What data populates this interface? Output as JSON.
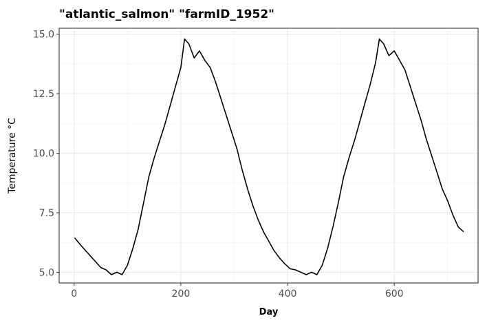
{
  "chart_data": {
    "type": "line",
    "title": "\"atlantic_salmon\" \"farmID_1952\"",
    "xlabel": "Day",
    "ylabel": "Temperature °C",
    "xlim": [
      -28,
      757
    ],
    "ylim": [
      4.55,
      15.25
    ],
    "x_ticks": [
      0,
      200,
      400,
      600
    ],
    "x_tick_labels": [
      "0",
      "200",
      "400",
      "600"
    ],
    "y_ticks": [
      5.0,
      7.5,
      10.0,
      12.5,
      15.0
    ],
    "y_tick_labels": [
      "5.0",
      "7.5",
      "10.0",
      "12.5",
      "15.0"
    ],
    "grid": true,
    "series": [
      {
        "color": "#000000",
        "x": [
          1,
          10,
          20,
          30,
          40,
          50,
          60,
          70,
          80,
          90,
          100,
          110,
          120,
          130,
          140,
          150,
          160,
          170,
          180,
          190,
          200,
          207,
          215,
          225,
          235,
          245,
          255,
          265,
          275,
          285,
          295,
          305,
          315,
          325,
          335,
          345,
          355,
          365,
          375,
          385,
          395,
          405,
          415,
          425,
          435,
          445,
          455,
          465,
          475,
          485,
          495,
          505,
          515,
          525,
          535,
          545,
          555,
          565,
          572,
          580,
          590,
          600,
          610,
          620,
          630,
          640,
          650,
          660,
          670,
          680,
          690,
          700,
          710,
          720,
          730
        ],
        "values": [
          6.45,
          6.2,
          5.95,
          5.7,
          5.45,
          5.2,
          5.1,
          4.9,
          5.0,
          4.9,
          5.3,
          6.0,
          6.8,
          7.9,
          9.0,
          9.8,
          10.5,
          11.2,
          12.0,
          12.8,
          13.6,
          14.8,
          14.6,
          14.0,
          14.3,
          13.9,
          13.6,
          13.0,
          12.3,
          11.6,
          10.9,
          10.2,
          9.3,
          8.5,
          7.8,
          7.2,
          6.7,
          6.3,
          5.9,
          5.6,
          5.35,
          5.15,
          5.1,
          5.0,
          4.9,
          5.0,
          4.9,
          5.3,
          6.0,
          6.9,
          7.9,
          9.0,
          9.8,
          10.5,
          11.3,
          12.1,
          12.9,
          13.8,
          14.8,
          14.6,
          14.1,
          14.3,
          13.9,
          13.5,
          12.8,
          12.1,
          11.4,
          10.6,
          9.9,
          9.2,
          8.5,
          8.0,
          7.4,
          6.9,
          6.7
        ]
      }
    ]
  }
}
